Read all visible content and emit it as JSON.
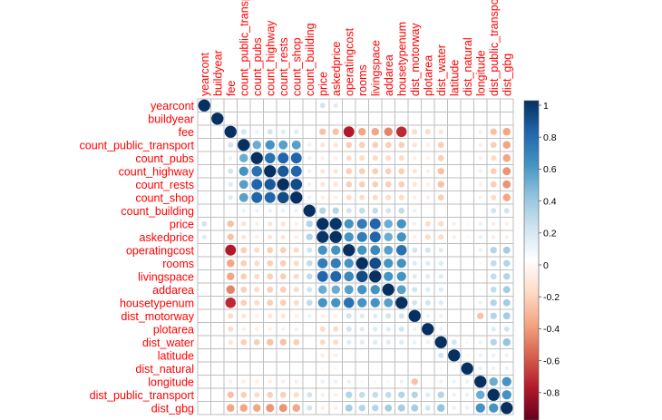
{
  "chart_data": {
    "type": "heatmap",
    "variables": [
      "yearcont",
      "buildyear",
      "fee",
      "count_public_transport",
      "count_pubs",
      "count_highway",
      "count_rests",
      "count_shop",
      "count_building",
      "price",
      "askedprice",
      "operatingcost",
      "rooms",
      "livingspace",
      "addarea",
      "housetypenum",
      "dist_motorway",
      "plotarea",
      "dist_water",
      "latitude",
      "dist_natural",
      "longitude",
      "dist_public_transport",
      "dist_gbg"
    ],
    "matrix": [
      [
        1.0,
        0.05,
        0.0,
        0.0,
        0.0,
        0.0,
        0.0,
        0.0,
        0.0,
        0.2,
        0.15,
        0.0,
        0.0,
        0.0,
        0.0,
        0.0,
        0.0,
        0.0,
        0.0,
        0.0,
        0.0,
        0.0,
        0.0,
        0.0
      ],
      [
        0.05,
        1.0,
        0.0,
        0.0,
        0.0,
        0.0,
        0.0,
        0.0,
        0.0,
        0.0,
        0.0,
        0.0,
        0.0,
        0.0,
        0.0,
        0.0,
        0.0,
        0.0,
        0.0,
        0.0,
        0.0,
        0.0,
        0.0,
        0.0
      ],
      [
        0.0,
        0.0,
        1.0,
        0.2,
        0.1,
        0.2,
        0.15,
        0.15,
        0.0,
        -0.3,
        -0.3,
        -0.8,
        -0.4,
        -0.4,
        -0.5,
        -0.75,
        -0.2,
        -0.2,
        -0.15,
        0.0,
        0.0,
        -0.1,
        -0.3,
        -0.4
      ],
      [
        0.0,
        0.0,
        0.2,
        1.0,
        0.5,
        0.6,
        0.55,
        0.55,
        0.1,
        -0.15,
        -0.15,
        -0.25,
        -0.25,
        -0.25,
        -0.25,
        -0.25,
        -0.15,
        -0.1,
        -0.25,
        0.0,
        0.0,
        -0.1,
        -0.25,
        -0.4
      ],
      [
        0.0,
        0.0,
        0.1,
        0.5,
        1.0,
        0.75,
        0.8,
        0.8,
        0.1,
        -0.1,
        -0.1,
        -0.2,
        -0.2,
        -0.2,
        -0.2,
        -0.2,
        -0.1,
        -0.1,
        -0.25,
        0.0,
        0.0,
        -0.1,
        -0.2,
        -0.4
      ],
      [
        0.0,
        0.0,
        0.2,
        0.6,
        0.75,
        1.0,
        0.85,
        0.8,
        0.1,
        -0.15,
        -0.15,
        -0.25,
        -0.25,
        -0.25,
        -0.25,
        -0.25,
        -0.15,
        -0.1,
        -0.3,
        0.0,
        0.0,
        -0.1,
        -0.25,
        -0.45
      ],
      [
        0.0,
        0.0,
        0.15,
        0.55,
        0.8,
        0.85,
        1.0,
        0.9,
        0.1,
        -0.15,
        -0.15,
        -0.25,
        -0.25,
        -0.25,
        -0.25,
        -0.25,
        -0.15,
        -0.1,
        -0.3,
        0.0,
        0.0,
        -0.1,
        -0.25,
        -0.45
      ],
      [
        0.0,
        0.0,
        0.15,
        0.55,
        0.8,
        0.8,
        0.9,
        1.0,
        0.1,
        -0.1,
        -0.1,
        -0.2,
        -0.2,
        -0.2,
        -0.2,
        -0.2,
        -0.1,
        -0.1,
        -0.25,
        0.0,
        0.0,
        -0.1,
        -0.2,
        -0.4
      ],
      [
        0.0,
        0.0,
        0.0,
        0.1,
        0.1,
        0.1,
        0.1,
        0.1,
        1.0,
        0.3,
        0.3,
        0.2,
        0.25,
        0.25,
        0.2,
        0.25,
        0.1,
        0.0,
        0.0,
        0.0,
        0.0,
        0.0,
        0.2,
        0.2
      ],
      [
        0.2,
        0.0,
        -0.3,
        -0.15,
        -0.1,
        -0.15,
        -0.15,
        -0.1,
        0.3,
        1.0,
        0.98,
        0.6,
        0.7,
        0.8,
        0.5,
        0.6,
        -0.1,
        -0.2,
        -0.2,
        -0.1,
        -0.05,
        0.1,
        -0.1,
        -0.1
      ],
      [
        0.15,
        0.0,
        -0.3,
        -0.15,
        -0.1,
        -0.15,
        -0.15,
        -0.1,
        0.3,
        0.98,
        1.0,
        0.6,
        0.7,
        0.8,
        0.5,
        0.6,
        -0.1,
        -0.2,
        -0.2,
        -0.1,
        -0.05,
        0.1,
        -0.1,
        -0.1
      ],
      [
        0.0,
        0.0,
        -0.8,
        -0.25,
        -0.2,
        -0.25,
        -0.25,
        -0.2,
        0.2,
        0.6,
        0.6,
        1.0,
        0.6,
        0.65,
        0.55,
        0.75,
        0.2,
        0.2,
        0.15,
        0.0,
        0.0,
        0.1,
        0.3,
        0.35
      ],
      [
        0.0,
        0.0,
        -0.4,
        -0.25,
        -0.2,
        -0.25,
        -0.25,
        -0.2,
        0.25,
        0.7,
        0.7,
        0.6,
        1.0,
        0.9,
        0.6,
        0.6,
        0.15,
        0.15,
        0.15,
        0.0,
        0.0,
        0.05,
        0.25,
        0.3
      ],
      [
        0.0,
        0.0,
        -0.4,
        -0.25,
        -0.2,
        -0.25,
        -0.25,
        -0.2,
        0.25,
        0.8,
        0.8,
        0.65,
        0.9,
        1.0,
        0.6,
        0.6,
        0.15,
        0.15,
        0.15,
        0.0,
        0.0,
        0.05,
        0.25,
        0.3
      ],
      [
        0.0,
        0.0,
        -0.5,
        -0.25,
        -0.2,
        -0.25,
        -0.25,
        -0.2,
        0.2,
        0.5,
        0.5,
        0.55,
        0.6,
        0.6,
        1.0,
        0.55,
        0.2,
        0.15,
        0.15,
        0.0,
        0.0,
        0.05,
        0.25,
        0.35
      ],
      [
        0.0,
        0.0,
        -0.75,
        -0.25,
        -0.2,
        -0.25,
        -0.25,
        -0.2,
        0.25,
        0.6,
        0.6,
        0.75,
        0.6,
        0.6,
        0.55,
        1.0,
        0.2,
        0.2,
        0.15,
        0.0,
        0.0,
        0.1,
        0.3,
        0.35
      ],
      [
        0.0,
        0.0,
        -0.2,
        -0.15,
        -0.1,
        -0.15,
        -0.15,
        -0.1,
        0.1,
        -0.1,
        -0.1,
        0.2,
        0.15,
        0.15,
        0.2,
        0.2,
        1.0,
        0.1,
        0.1,
        0.0,
        0.0,
        -0.3,
        0.3,
        0.35
      ],
      [
        0.0,
        0.0,
        -0.2,
        -0.1,
        -0.1,
        -0.1,
        -0.1,
        -0.1,
        0.0,
        -0.2,
        -0.2,
        0.2,
        0.15,
        0.15,
        0.15,
        0.2,
        0.1,
        1.0,
        0.1,
        0.0,
        0.0,
        0.0,
        0.15,
        0.2
      ],
      [
        0.0,
        0.0,
        -0.15,
        -0.25,
        -0.25,
        -0.3,
        -0.3,
        -0.25,
        0.0,
        -0.2,
        -0.2,
        0.15,
        0.15,
        0.15,
        0.15,
        0.15,
        0.1,
        0.1,
        1.0,
        0.2,
        0.05,
        0.1,
        0.3,
        0.4
      ],
      [
        0.0,
        0.0,
        0.0,
        0.0,
        0.0,
        0.0,
        0.0,
        0.0,
        0.0,
        -0.1,
        -0.1,
        0.0,
        0.0,
        0.0,
        0.0,
        0.0,
        0.0,
        0.0,
        0.2,
        1.0,
        0.05,
        0.1,
        0.1,
        0.1
      ],
      [
        0.0,
        0.0,
        0.0,
        0.0,
        0.0,
        0.0,
        0.0,
        0.0,
        0.0,
        -0.05,
        -0.05,
        0.0,
        0.0,
        0.0,
        0.0,
        0.0,
        0.0,
        0.0,
        0.05,
        0.05,
        1.0,
        0.1,
        0.1,
        0.1
      ],
      [
        0.0,
        0.0,
        -0.1,
        -0.1,
        -0.1,
        -0.1,
        -0.1,
        -0.1,
        0.0,
        0.1,
        0.1,
        0.1,
        0.05,
        0.05,
        0.05,
        0.1,
        -0.3,
        0.0,
        0.1,
        0.1,
        0.1,
        1.0,
        0.5,
        0.6
      ],
      [
        0.0,
        0.0,
        -0.3,
        -0.25,
        -0.2,
        -0.25,
        -0.25,
        -0.2,
        0.2,
        -0.1,
        -0.1,
        0.3,
        0.25,
        0.25,
        0.25,
        0.3,
        0.3,
        0.15,
        0.3,
        0.1,
        0.1,
        0.5,
        1.0,
        0.6
      ],
      [
        0.0,
        0.0,
        -0.4,
        -0.4,
        -0.4,
        -0.45,
        -0.45,
        -0.4,
        0.2,
        -0.1,
        -0.1,
        0.35,
        0.3,
        0.3,
        0.35,
        0.35,
        0.35,
        0.2,
        0.4,
        0.1,
        0.1,
        0.6,
        0.6,
        1.0
      ]
    ],
    "colorbar": {
      "ticks": [
        "1",
        "0.8",
        "0.6",
        "0.4",
        "0.2",
        "0",
        "-0.2",
        "-0.4",
        "-0.6",
        "-0.8",
        "-1"
      ],
      "range": [
        -1,
        1
      ]
    },
    "colors": {
      "negative": "#67001f",
      "neutral": "#ffffff",
      "positive": "#053061",
      "label": "#ff0000",
      "grid": "#bfbfbf"
    }
  }
}
